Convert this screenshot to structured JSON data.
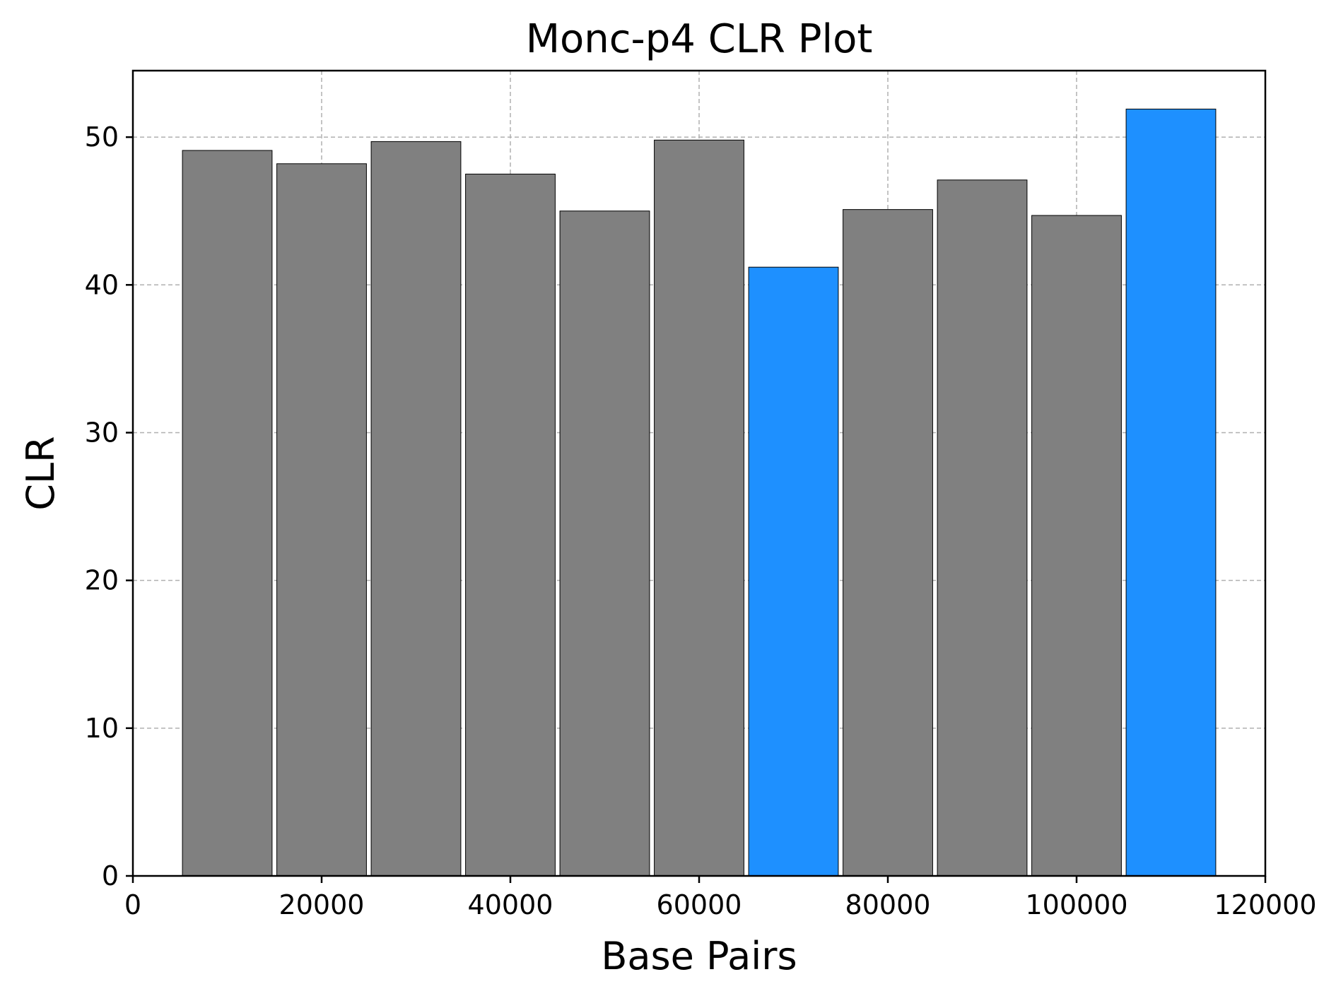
{
  "chart_data": {
    "type": "bar",
    "title": "Monc-p4 CLR Plot",
    "xlabel": "Base Pairs",
    "ylabel": "CLR",
    "xlim": [
      0,
      120000
    ],
    "ylim": [
      0,
      54.5
    ],
    "x_ticks": [
      0,
      20000,
      40000,
      60000,
      80000,
      100000,
      120000
    ],
    "y_ticks": [
      0,
      10,
      20,
      30,
      40,
      50
    ],
    "x_tick_labels": [
      "0",
      "20000",
      "40000",
      "60000",
      "80000",
      "100000",
      "120000"
    ],
    "y_tick_labels": [
      "0",
      "10",
      "20",
      "30",
      "40",
      "50"
    ],
    "grid": true,
    "bar_width": 9500,
    "colors": {
      "default": "#808080",
      "highlight": "#1e90ff"
    },
    "bars": [
      {
        "x": 10000,
        "value": 49.1,
        "highlight": false
      },
      {
        "x": 20000,
        "value": 48.2,
        "highlight": false
      },
      {
        "x": 30000,
        "value": 49.7,
        "highlight": false
      },
      {
        "x": 40000,
        "value": 47.5,
        "highlight": false
      },
      {
        "x": 50000,
        "value": 45.0,
        "highlight": false
      },
      {
        "x": 60000,
        "value": 49.8,
        "highlight": false
      },
      {
        "x": 70000,
        "value": 41.2,
        "highlight": true
      },
      {
        "x": 80000,
        "value": 45.1,
        "highlight": false
      },
      {
        "x": 90000,
        "value": 47.1,
        "highlight": false
      },
      {
        "x": 100000,
        "value": 44.7,
        "highlight": false
      },
      {
        "x": 110000,
        "value": 51.9,
        "highlight": true
      }
    ]
  }
}
